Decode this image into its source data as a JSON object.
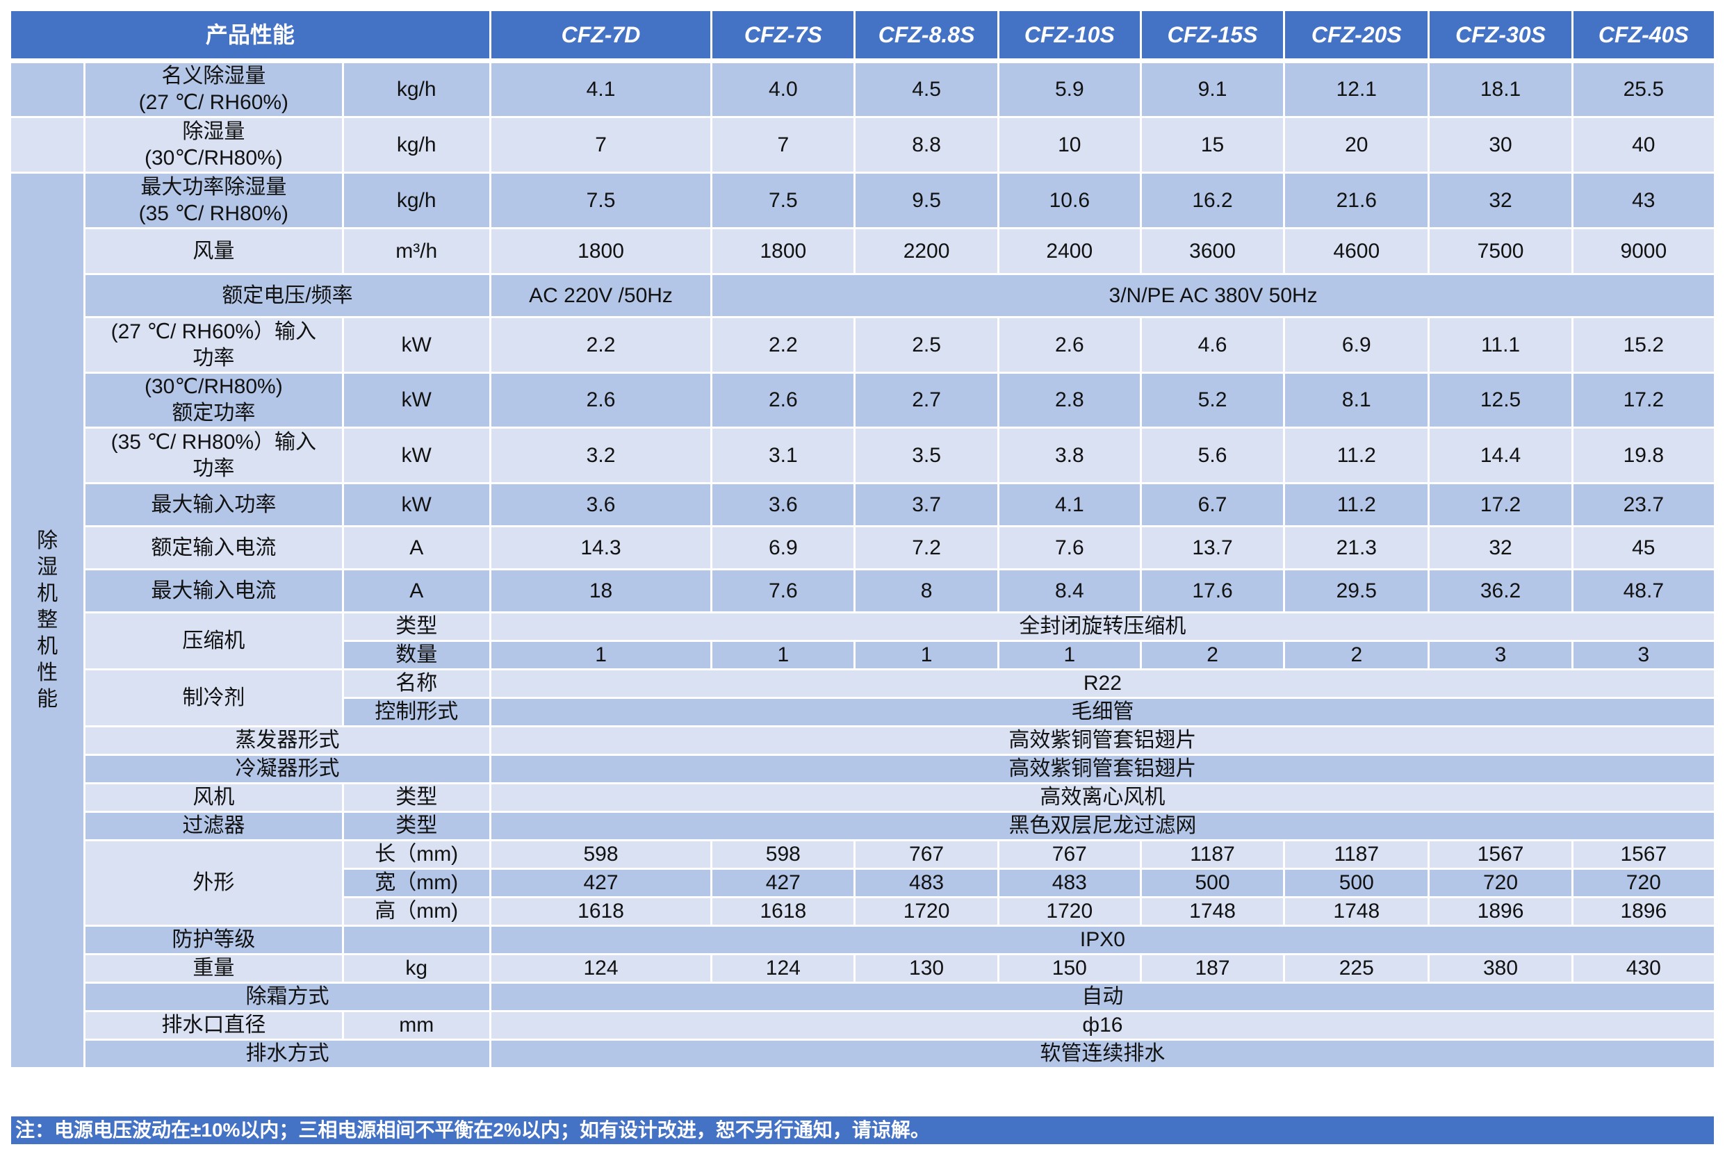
{
  "header": {
    "title": "产品性能",
    "models": [
      "CFZ-7D",
      "CFZ-7S",
      "CFZ-8.8S",
      "CFZ-10S",
      "CFZ-15S",
      "CFZ-20S",
      "CFZ-30S",
      "CFZ-40S"
    ]
  },
  "group_label": "除\n湿\n机\n整\n机\n性\n能",
  "rows": [
    {
      "label": "名义除湿量\n(27 ℃/ RH60%)",
      "unit": "kg/h",
      "values": [
        "4.1",
        "4.0",
        "4.5",
        "5.9",
        "9.1",
        "12.1",
        "18.1",
        "25.5"
      ]
    },
    {
      "label": "除湿量\n(30℃/RH80%)",
      "unit": "kg/h",
      "values": [
        "7",
        "7",
        "8.8",
        "10",
        "15",
        "20",
        "30",
        "40"
      ]
    },
    {
      "label": "最大功率除湿量\n(35 ℃/ RH80%)",
      "unit": "kg/h",
      "values": [
        "7.5",
        "7.5",
        "9.5",
        "10.6",
        "16.2",
        "21.6",
        "32",
        "43"
      ]
    },
    {
      "label": "风量",
      "unit": "m³/h",
      "values": [
        "1800",
        "1800",
        "2200",
        "2400",
        "3600",
        "4600",
        "7500",
        "9000"
      ]
    },
    {
      "label": "额定电压/频率",
      "split": [
        "AC 220V /50Hz",
        "3/N/PE AC 380V 50Hz"
      ]
    },
    {
      "label": "(27 ℃/ RH60%）输入\n功率",
      "unit": "kW",
      "values": [
        "2.2",
        "2.2",
        "2.5",
        "2.6",
        "4.6",
        "6.9",
        "11.1",
        "15.2"
      ]
    },
    {
      "label": "(30℃/RH80%)\n额定功率",
      "unit": "kW",
      "values": [
        "2.6",
        "2.6",
        "2.7",
        "2.8",
        "5.2",
        "8.1",
        "12.5",
        "17.2"
      ]
    },
    {
      "label": "(35 ℃/ RH80%）输入\n功率",
      "unit": "kW",
      "values": [
        "3.2",
        "3.1",
        "3.5",
        "3.8",
        "5.6",
        "11.2",
        "14.4",
        "19.8"
      ]
    },
    {
      "label": "最大输入功率",
      "unit": "kW",
      "values": [
        "3.6",
        "3.6",
        "3.7",
        "4.1",
        "6.7",
        "11.2",
        "17.2",
        "23.7"
      ]
    },
    {
      "label": "额定输入电流",
      "unit": "A",
      "values": [
        "14.3",
        "6.9",
        "7.2",
        "7.6",
        "13.7",
        "21.3",
        "32",
        "45"
      ]
    },
    {
      "label": "最大输入电流",
      "unit": "A",
      "values": [
        "18",
        "7.6",
        "8",
        "8.4",
        "17.6",
        "29.5",
        "36.2",
        "48.7"
      ]
    },
    {
      "label": "压缩机",
      "subrows": [
        {
          "unit": "类型",
          "merged": "全封闭旋转压缩机"
        },
        {
          "unit": "数量",
          "values": [
            "1",
            "1",
            "1",
            "1",
            "2",
            "2",
            "3",
            "3"
          ]
        }
      ]
    },
    {
      "label": "制冷剂",
      "subrows": [
        {
          "unit": "名称",
          "merged": "R22"
        },
        {
          "unit": "控制形式",
          "merged": "毛细管"
        }
      ]
    },
    {
      "label": "蒸发器形式",
      "merged": "高效紫铜管套铝翅片"
    },
    {
      "label": "冷凝器形式",
      "merged": "高效紫铜管套铝翅片"
    },
    {
      "label": "风机",
      "unit": "类型",
      "merged": "高效离心风机"
    },
    {
      "label": "过滤器",
      "unit": "类型",
      "merged": "黑色双层尼龙过滤网"
    },
    {
      "label": "外形",
      "subrows": [
        {
          "unit": "长（mm)",
          "values": [
            "598",
            "598",
            "767",
            "767",
            "1187",
            "1187",
            "1567",
            "1567"
          ]
        },
        {
          "unit": "宽（mm)",
          "values": [
            "427",
            "427",
            "483",
            "483",
            "500",
            "500",
            "720",
            "720"
          ]
        },
        {
          "unit": "高（mm)",
          "values": [
            "1618",
            "1618",
            "1720",
            "1720",
            "1748",
            "1748",
            "1896",
            "1896"
          ]
        }
      ]
    },
    {
      "label": "防护等级",
      "unit": "",
      "merged": "IPX0"
    },
    {
      "label": "重量",
      "unit": "kg",
      "values": [
        "124",
        "124",
        "130",
        "150",
        "187",
        "225",
        "380",
        "430"
      ]
    },
    {
      "label": "除霜方式",
      "merged": "自动"
    },
    {
      "label": "排水口直径",
      "unit": "mm",
      "merged": "ф16"
    },
    {
      "label": "排水方式",
      "merged": "软管连续排水"
    }
  ],
  "note": "注：电源电压波动在±10%以内；三相电源相间不平衡在2%以内；如有设计改进，恕不另行通知，请谅解。",
  "colors": {
    "header": "#4472c4",
    "row_dark": "#b4c6e7",
    "row_light": "#d9e1f2"
  }
}
